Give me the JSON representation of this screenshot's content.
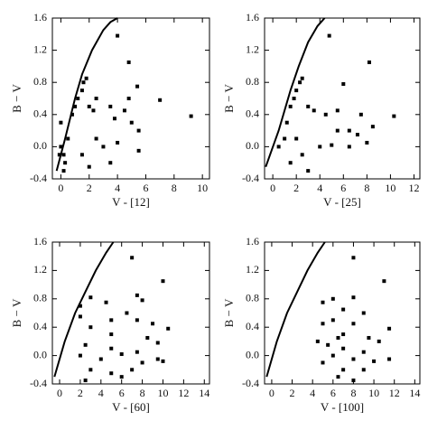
{
  "chart_data": [
    {
      "type": "scatter",
      "xlabel": "V - [12]",
      "ylabel": "B − V",
      "xlim": [
        -0.6,
        10.5
      ],
      "ylim": [
        -0.4,
        1.6
      ],
      "xticks": [
        0,
        2,
        4,
        6,
        8,
        10
      ],
      "yticks": [
        -0.4,
        {
          "value": 0,
          "label": "0.0"
        },
        0.4,
        0.8,
        1.2,
        1.6
      ],
      "color": "#000000",
      "locus": {
        "x": [
          -0.3,
          0.3,
          1.0,
          1.5,
          2.2,
          3.0,
          3.5,
          4.0
        ],
        "y": [
          -0.3,
          0.1,
          0.6,
          0.9,
          1.2,
          1.45,
          1.55,
          1.6
        ]
      },
      "points": {
        "x": [
          0,
          0.2,
          0.5,
          0.3,
          -0.1,
          0.8,
          1.0,
          1.2,
          1.5,
          1.6,
          1.8,
          2.0,
          2.5,
          2.3,
          3.5,
          3.8,
          4.5,
          5.0,
          5.5,
          4.0,
          4.8,
          5.4,
          7.0,
          9.2,
          3.0,
          4.0,
          5.5,
          1.5,
          2.0,
          0.2,
          2.5,
          3.5,
          4.8,
          0.0
        ],
        "y": [
          0.0,
          -0.1,
          0.1,
          -0.2,
          -0.1,
          0.4,
          0.5,
          0.6,
          0.7,
          0.8,
          0.85,
          0.5,
          0.6,
          0.45,
          0.5,
          0.35,
          0.45,
          0.3,
          0.2,
          1.38,
          1.05,
          0.75,
          0.58,
          0.38,
          0.0,
          0.05,
          -0.05,
          -0.1,
          -0.25,
          -0.3,
          0.1,
          -0.2,
          0.6,
          0.3
        ]
      }
    },
    {
      "type": "scatter",
      "xlabel": "V - [25]",
      "ylabel": "B − V",
      "xlim": [
        -0.7,
        12.5
      ],
      "ylim": [
        -0.4,
        1.6
      ],
      "xticks": [
        0,
        2,
        4,
        6,
        8,
        10,
        12
      ],
      "yticks": [
        -0.4,
        {
          "value": 0,
          "label": "0.0"
        },
        0.4,
        0.8,
        1.2,
        1.6
      ],
      "color": "#000000",
      "locus": {
        "x": [
          -0.6,
          0.5,
          1.5,
          2.2,
          3.0,
          3.8,
          4.4
        ],
        "y": [
          -0.25,
          0.2,
          0.7,
          1.0,
          1.3,
          1.5,
          1.6
        ]
      },
      "points": {
        "x": [
          0.5,
          1,
          1.2,
          1.5,
          1.8,
          2.0,
          2.3,
          2.5,
          3.0,
          3.5,
          4.5,
          5.5,
          4.8,
          6.0,
          8.2,
          10.3,
          6.5,
          8.0,
          8.5,
          5.0,
          6.5,
          2.5,
          1.5,
          3.0,
          2.0,
          7.5,
          5.5,
          4.0,
          7.2
        ],
        "y": [
          0.0,
          0.1,
          0.3,
          0.5,
          0.6,
          0.7,
          0.8,
          0.85,
          0.5,
          0.45,
          0.4,
          0.45,
          1.38,
          0.78,
          1.05,
          0.38,
          0.2,
          0.05,
          0.25,
          0.02,
          0.0,
          -0.1,
          -0.2,
          -0.3,
          0.1,
          0.4,
          0.2,
          0.0,
          0.15
        ]
      }
    },
    {
      "type": "scatter",
      "xlabel": "V - [60]",
      "ylabel": "B − V",
      "xlim": [
        -0.7,
        14.5
      ],
      "ylim": [
        -0.4,
        1.6
      ],
      "xticks": [
        0,
        2,
        4,
        6,
        8,
        10,
        12,
        14
      ],
      "yticks": [
        -0.4,
        {
          "value": 0,
          "label": "0.0"
        },
        0.4,
        0.8,
        1.2,
        1.6
      ],
      "color": "#000000",
      "locus": {
        "x": [
          -0.5,
          0.5,
          1.5,
          2.5,
          3.5,
          4.5,
          5.2
        ],
        "y": [
          -0.3,
          0.2,
          0.6,
          0.9,
          1.2,
          1.45,
          1.6
        ]
      },
      "points": {
        "x": [
          7,
          10,
          7.5,
          8,
          3,
          2,
          4.5,
          6.5,
          2,
          5,
          7.5,
          9,
          10.5,
          3,
          5,
          8.5,
          9.5,
          2.5,
          5,
          7.5,
          2,
          4,
          6,
          8,
          10,
          3,
          5,
          7,
          2.5,
          6,
          9.5
        ],
        "y": [
          1.38,
          1.05,
          0.85,
          0.78,
          0.82,
          0.7,
          0.75,
          0.6,
          0.55,
          0.5,
          0.5,
          0.45,
          0.38,
          0.4,
          0.3,
          0.25,
          0.18,
          0.15,
          0.1,
          0.05,
          0.0,
          -0.05,
          0.02,
          -0.1,
          -0.08,
          -0.2,
          -0.25,
          -0.2,
          -0.35,
          -0.3,
          -0.05
        ]
      }
    },
    {
      "type": "scatter",
      "xlabel": "V - [100]",
      "ylabel": "B − V",
      "xlim": [
        -0.7,
        14.5
      ],
      "ylim": [
        -0.4,
        1.6
      ],
      "xticks": [
        0,
        2,
        4,
        6,
        8,
        10,
        12,
        14
      ],
      "yticks": [
        -0.4,
        {
          "value": 0,
          "label": "0.0"
        },
        0.4,
        0.8,
        1.2,
        1.6
      ],
      "color": "#000000",
      "locus": {
        "x": [
          -0.5,
          0.5,
          1.5,
          2.5,
          3.5,
          4.5,
          5.2
        ],
        "y": [
          -0.3,
          0.2,
          0.6,
          0.9,
          1.2,
          1.45,
          1.6
        ]
      },
      "points": {
        "x": [
          8,
          11,
          8,
          6,
          5,
          7,
          9,
          6,
          8,
          11.5,
          5,
          7,
          9.5,
          10.5,
          5.5,
          7,
          9,
          6,
          8,
          10,
          5,
          7,
          9,
          6.5,
          8,
          11.5,
          4.5,
          6.5
        ],
        "y": [
          1.38,
          1.05,
          0.82,
          0.8,
          0.75,
          0.65,
          0.6,
          0.5,
          0.45,
          0.38,
          0.45,
          0.3,
          0.25,
          0.2,
          0.15,
          0.1,
          0.05,
          0.0,
          -0.05,
          -0.08,
          -0.1,
          -0.2,
          -0.2,
          -0.3,
          -0.35,
          -0.05,
          0.2,
          0.25
        ]
      }
    }
  ]
}
